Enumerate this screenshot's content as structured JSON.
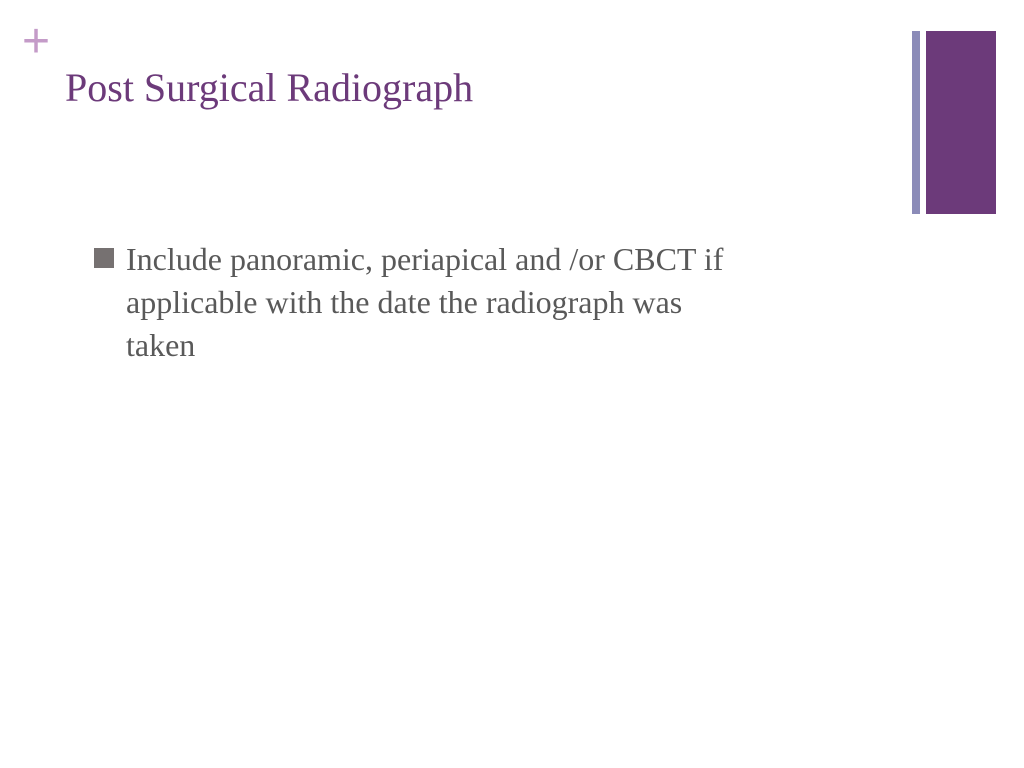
{
  "colors": {
    "plus": "#c49bc8",
    "title": "#6c3a7a",
    "thin_bar": "#8b8bb8",
    "thick_bar": "#6c3a7a",
    "bullet_square": "#767171",
    "body_text": "#595959"
  },
  "decoration": {
    "plus_symbol": "+"
  },
  "slide": {
    "title": "Post Surgical Radiograph",
    "bullets": [
      {
        "text": "Include panoramic, periapical and /or CBCT if applicable with the date the radiograph was taken"
      }
    ]
  }
}
